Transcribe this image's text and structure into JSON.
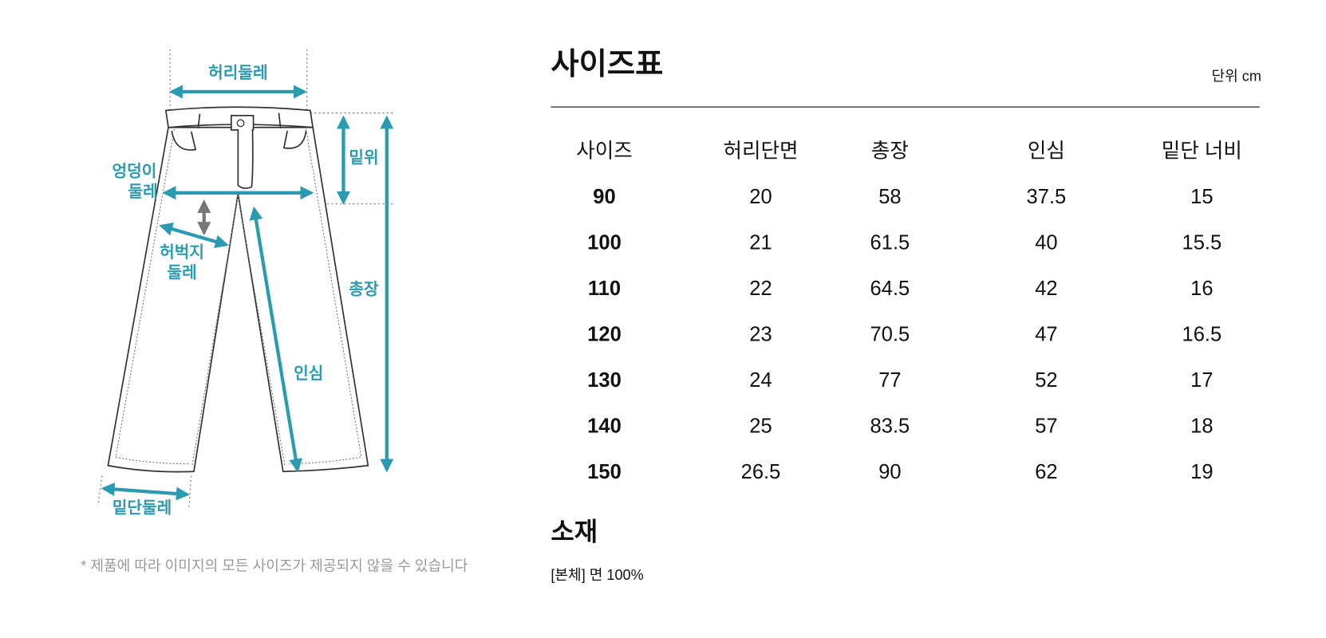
{
  "diagram": {
    "labels": {
      "waist": "허리둘레",
      "rise": "밑위",
      "hip": [
        "엉덩이",
        "둘레"
      ],
      "thigh": [
        "허벅지",
        "둘레"
      ],
      "length": "총장",
      "inseam": "인심",
      "hem": "밑단둘레"
    },
    "note": "* 제품에 따라 이미지의 모든 사이즈가 제공되지 않을 수 있습니다"
  },
  "size_table": {
    "title": "사이즈표",
    "unit": "단위 cm",
    "columns": [
      "사이즈",
      "허리단면",
      "총장",
      "인심",
      "밑단 너비"
    ],
    "rows": [
      [
        90,
        20,
        58,
        37.5,
        15
      ],
      [
        100,
        21,
        61.5,
        40,
        15.5
      ],
      [
        110,
        22,
        64.5,
        42,
        16
      ],
      [
        120,
        23,
        70.5,
        47,
        16.5
      ],
      [
        130,
        24,
        77,
        52,
        17
      ],
      [
        140,
        25,
        83.5,
        57,
        18
      ],
      [
        150,
        26.5,
        90,
        62,
        19
      ]
    ]
  },
  "material": {
    "title": "소재",
    "text": "[본체] 면 100%"
  }
}
